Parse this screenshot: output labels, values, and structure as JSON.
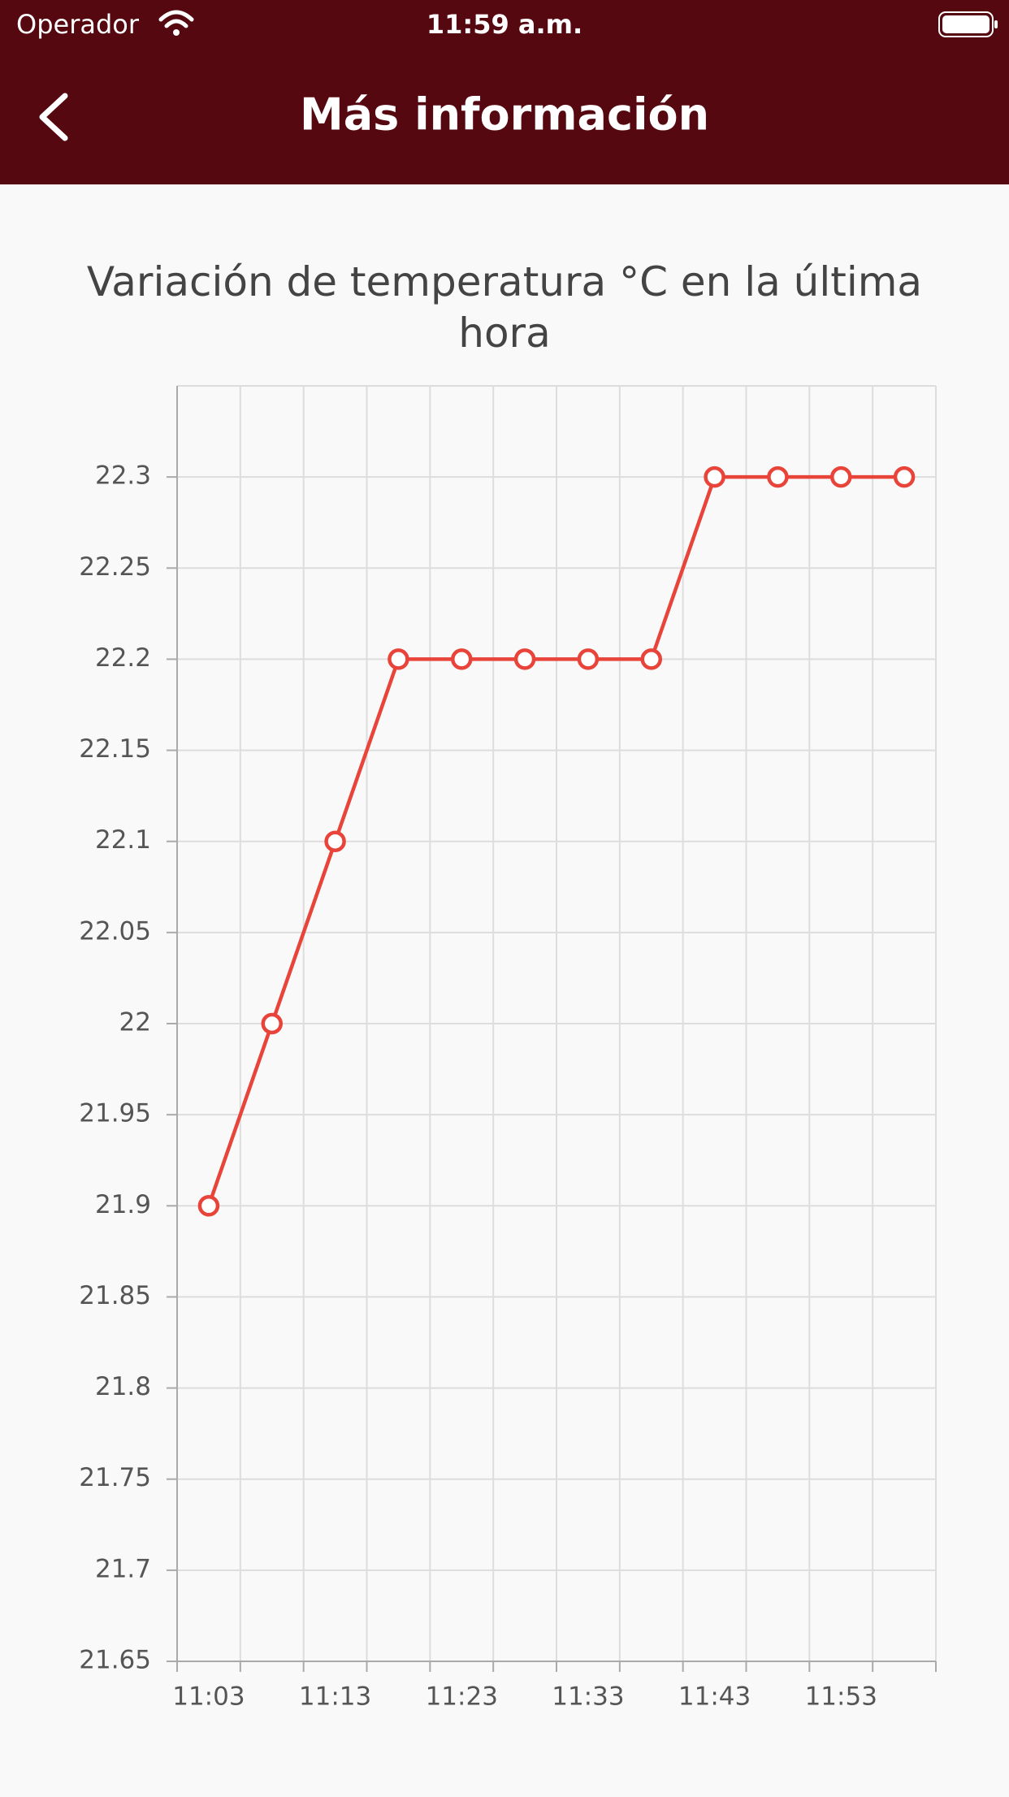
{
  "status_bar": {
    "carrier": "Operador",
    "time": "11:59 a.m."
  },
  "nav": {
    "title": "Más información"
  },
  "chart_data": {
    "type": "line",
    "title": "Variación de temperatura °C en la última hora",
    "categories": [
      "11:03",
      null,
      "11:13",
      null,
      "11:23",
      null,
      "11:33",
      null,
      "11:43",
      null,
      "11:53",
      null
    ],
    "values": [
      21.9,
      22.0,
      22.1,
      22.2,
      22.2,
      22.2,
      22.2,
      22.2,
      22.3,
      22.3,
      22.3,
      22.3
    ],
    "color": "#e8443a",
    "ylim": [
      21.65,
      22.35
    ],
    "yticks": [
      21.65,
      21.7,
      21.75,
      21.8,
      21.85,
      21.9,
      21.95,
      22,
      22.05,
      22.1,
      22.15,
      22.2,
      22.25,
      22.3
    ],
    "grid": true
  }
}
